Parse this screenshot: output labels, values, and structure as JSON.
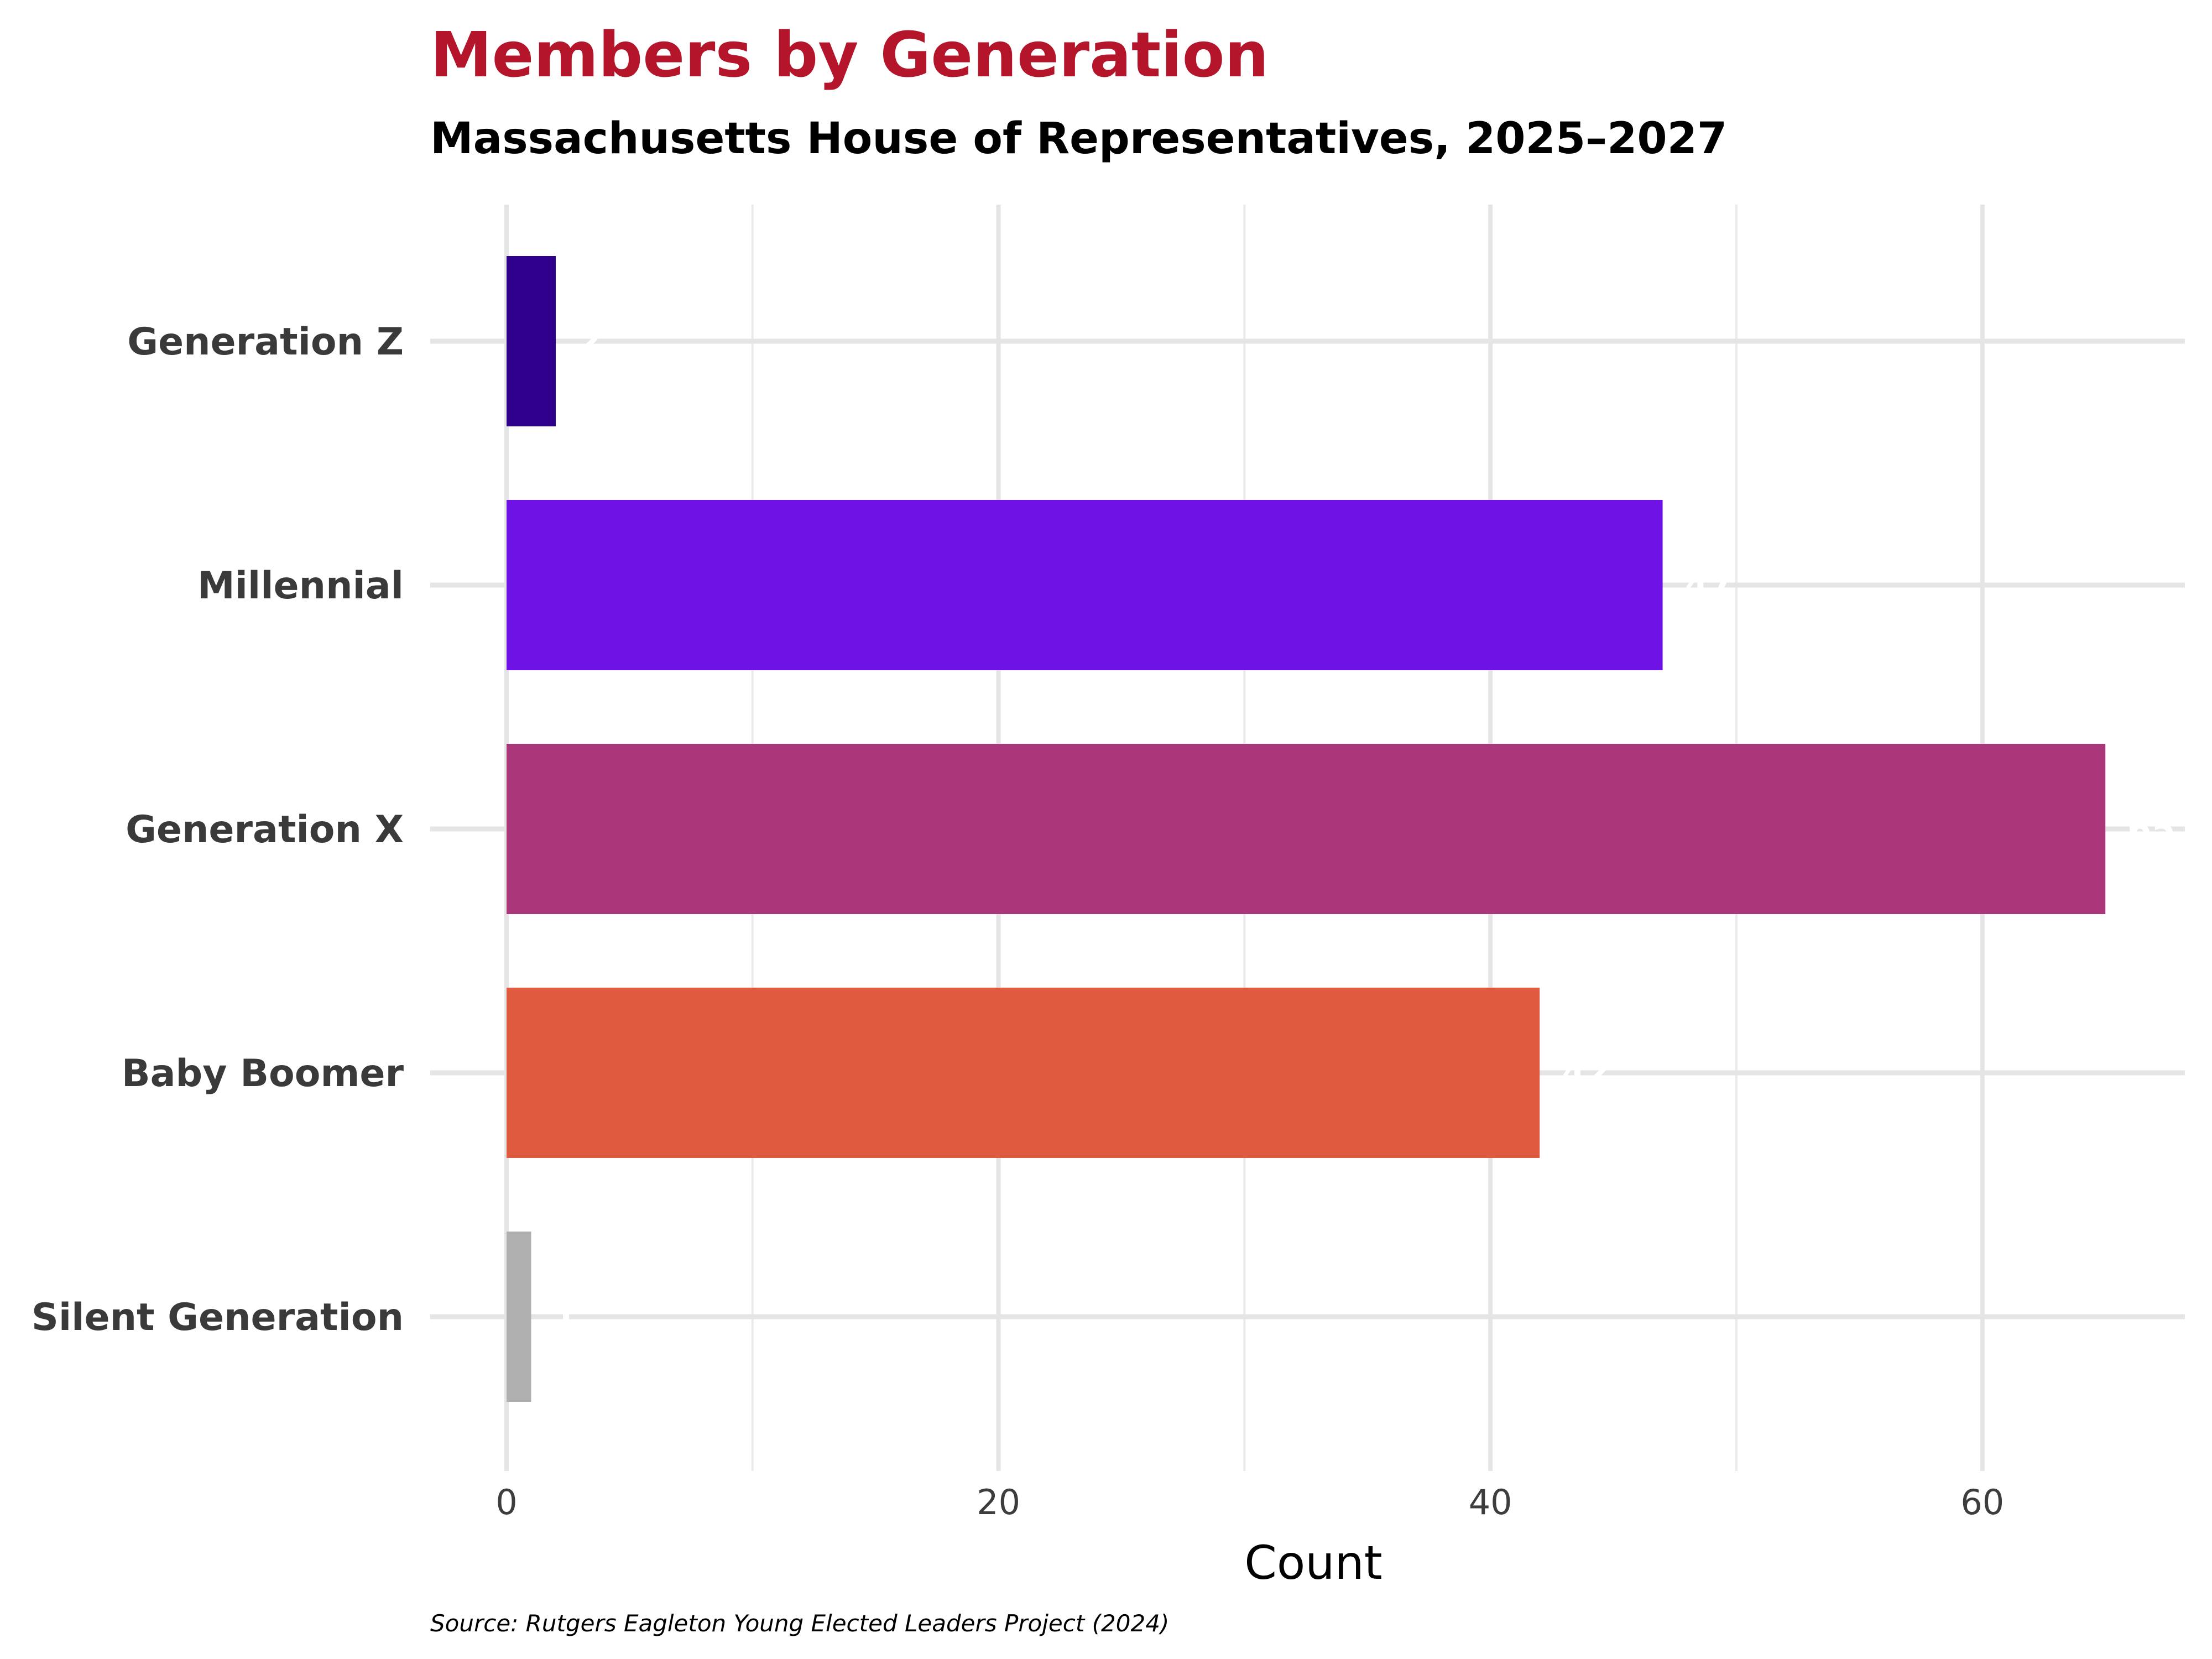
{
  "chart_data": {
    "type": "bar",
    "orientation": "horizontal",
    "title": "Members by Generation",
    "subtitle": "Massachusetts House of Representatives, 2025–2027",
    "xlabel": "Count",
    "ylabel": "",
    "caption": "Source: Rutgers Eagleton Young Elected Leaders Project (2024)",
    "categories": [
      "Generation Z",
      "Millennial",
      "Generation X",
      "Baby Boomer",
      "Silent Generation"
    ],
    "values": [
      2,
      47,
      65,
      42,
      1
    ],
    "value_labels": [
      "2",
      "47",
      "65",
      "42",
      "1"
    ],
    "colors": [
      "#2E008B",
      "#6F12E6",
      "#AA377A",
      "#E05A40",
      "#B0B0B0"
    ],
    "xlim": [
      0,
      68
    ],
    "xticks": [
      0,
      20,
      40,
      60
    ],
    "xtick_labels": [
      "0",
      "20",
      "40",
      "60"
    ],
    "grid": true,
    "legend": "none",
    "title_color": "#B5152B"
  }
}
